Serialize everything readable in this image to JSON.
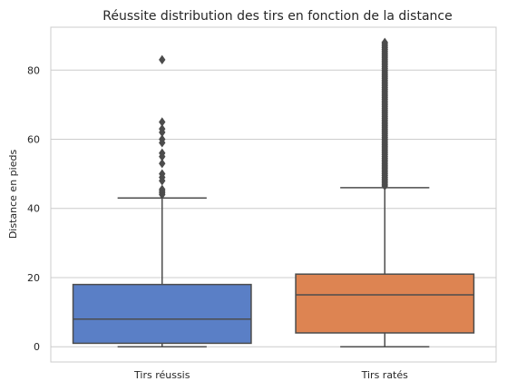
{
  "chart_data": {
    "type": "box",
    "title": "Réussite distribution des tirs en fonction de la distance",
    "xlabel": "",
    "ylabel": "Distance en pieds",
    "ylim": [
      -4.4,
      92.4
    ],
    "yticks": [
      0,
      20,
      40,
      60,
      80
    ],
    "grid": "horizontal",
    "categories": [
      "Tirs réussis",
      "Tirs ratés"
    ],
    "boxes": [
      {
        "category": "Tirs réussis",
        "color": "#5a7fc6",
        "whisker_low": 0,
        "q1": 1,
        "median": 8,
        "q3": 18,
        "whisker_high": 43,
        "outliers": [
          44,
          44.5,
          45,
          45.5,
          48,
          49,
          50,
          53,
          55,
          56,
          59,
          60,
          62,
          63,
          65,
          83
        ]
      },
      {
        "category": "Tirs ratés",
        "color": "#dd8452",
        "whisker_low": 0,
        "q1": 4,
        "median": 15,
        "q3": 21,
        "whisker_high": 46,
        "outlier_range": [
          46.5,
          88
        ]
      }
    ]
  },
  "colors": {
    "axis": "#cccccc",
    "grid": "#cccccc",
    "box_line": "#4c4c4c"
  }
}
